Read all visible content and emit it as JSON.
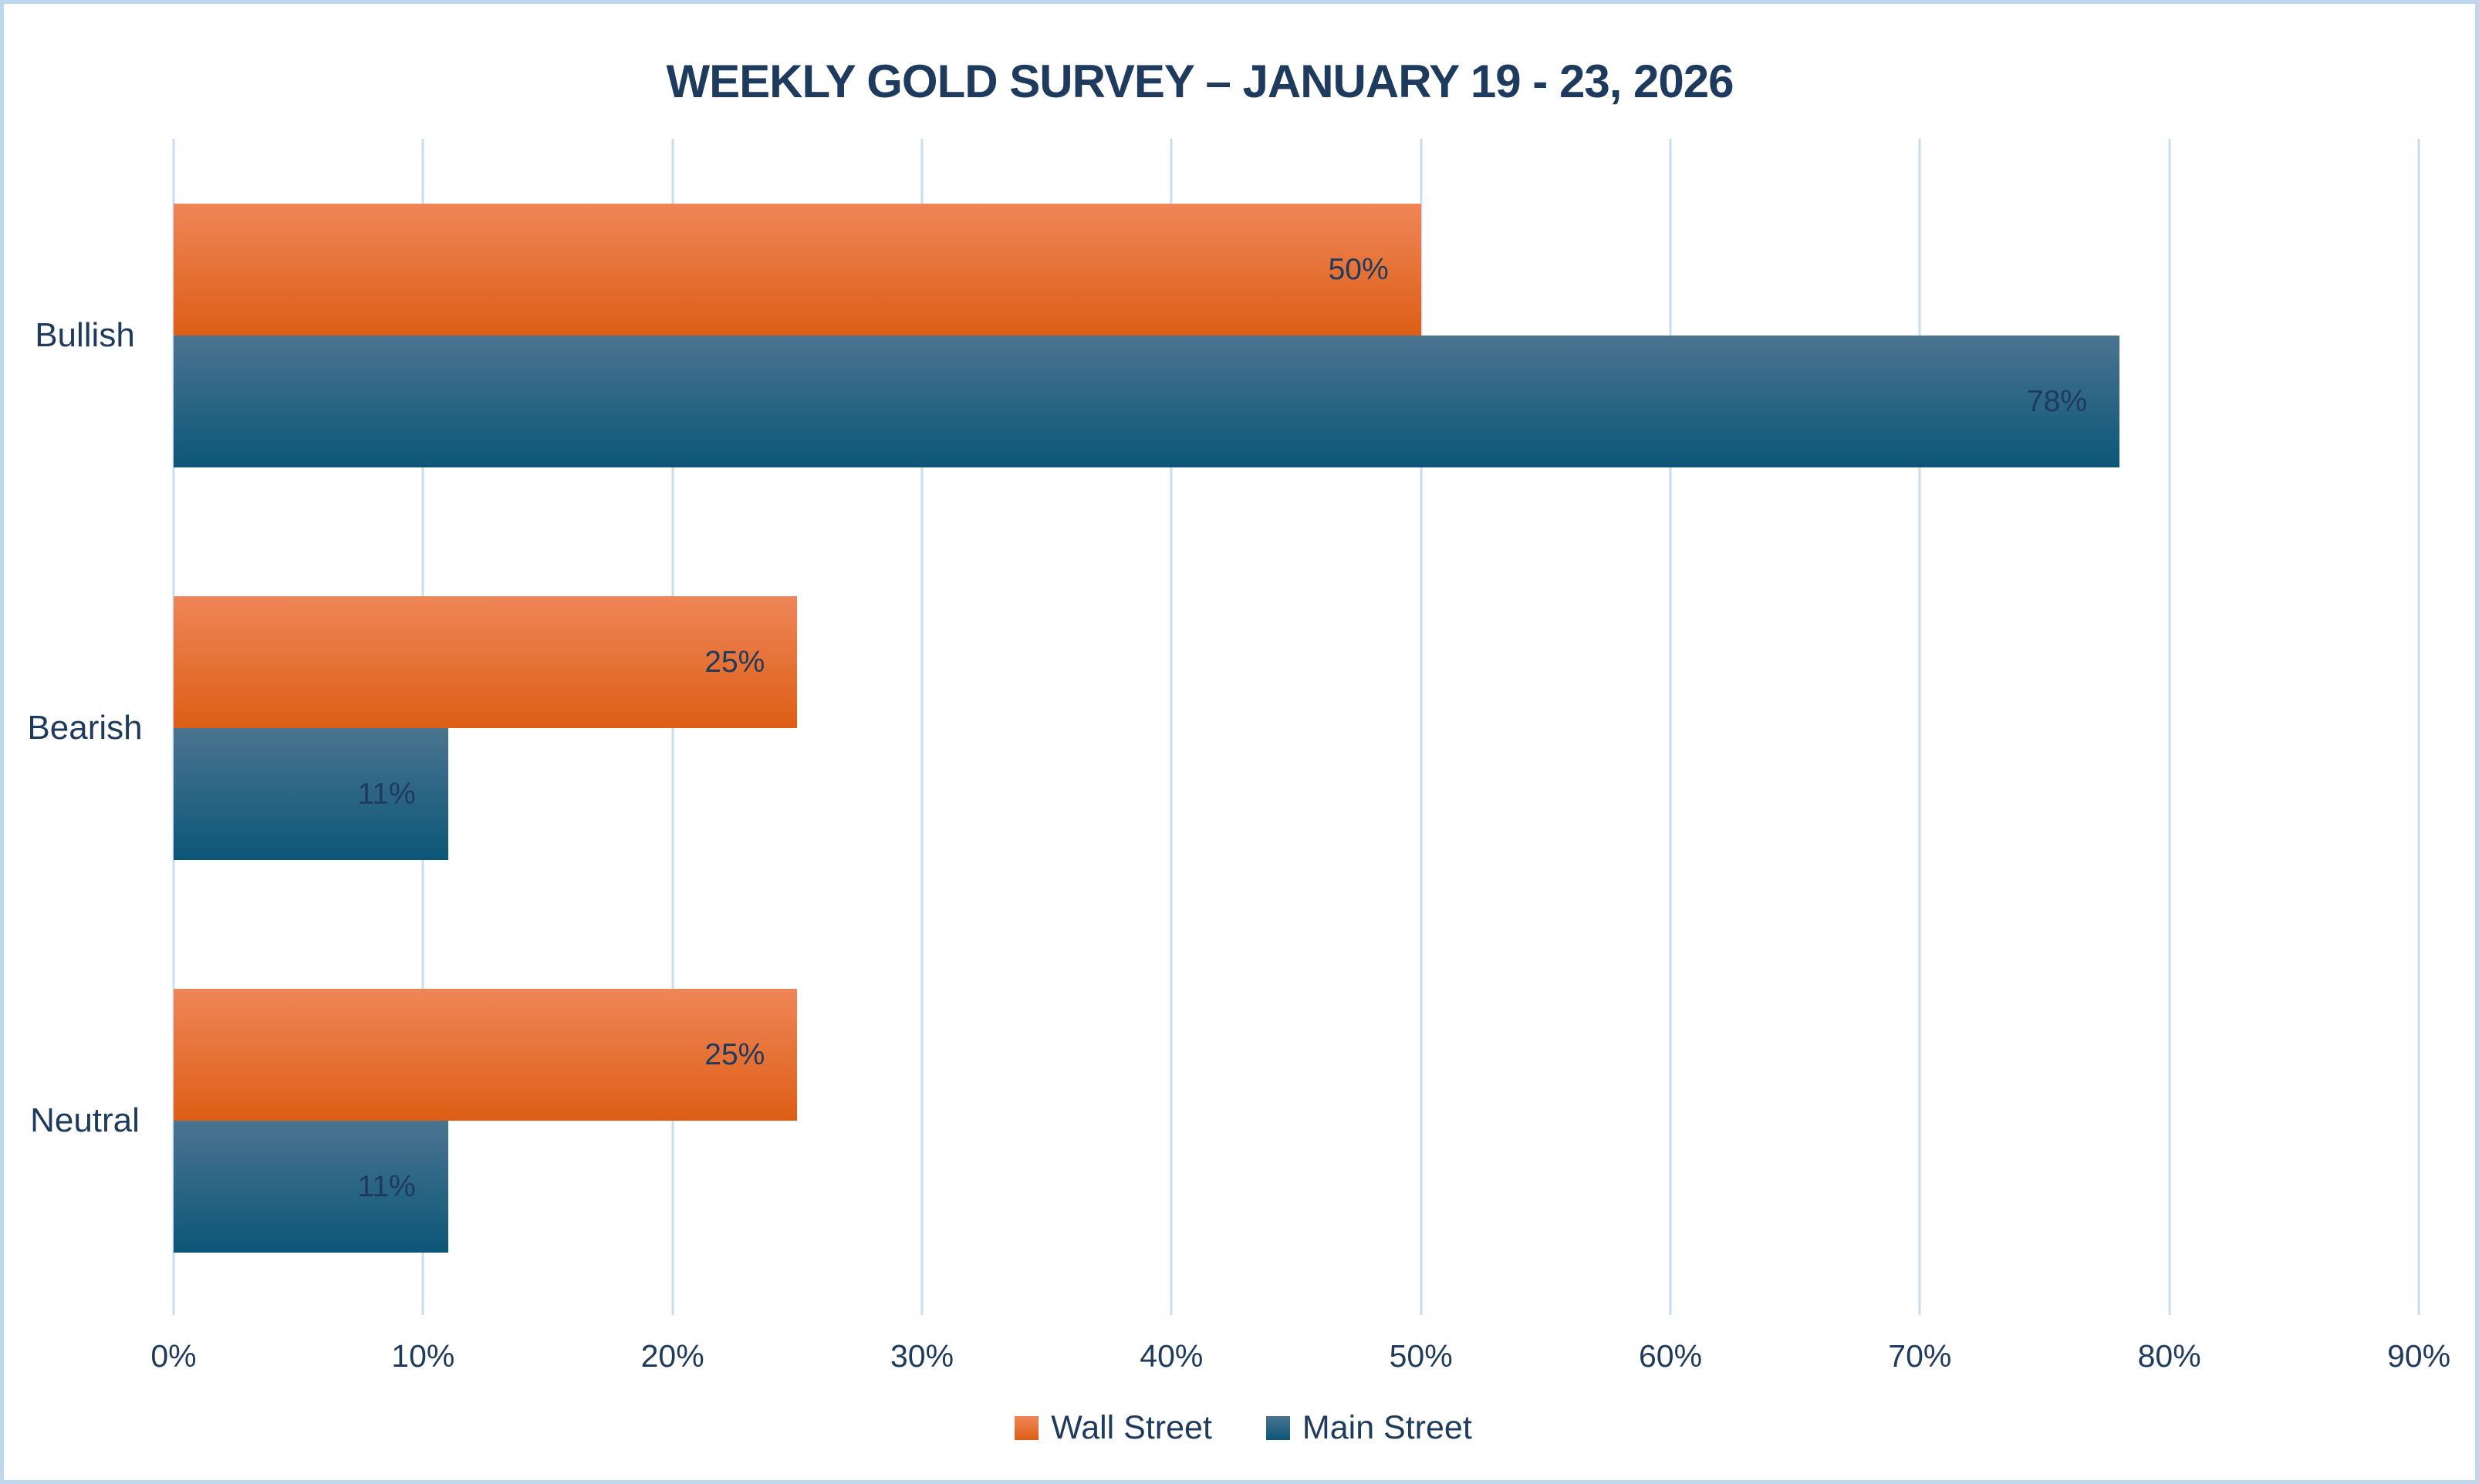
{
  "chart_data": {
    "type": "bar",
    "orientation": "horizontal",
    "title": "WEEKLY GOLD SURVEY – JANUARY 19 - 23, 2026",
    "categories": [
      "Bullish",
      "Bearish",
      "Neutral"
    ],
    "series": [
      {
        "name": "Wall Street",
        "values": [
          50,
          25,
          25
        ],
        "data_labels": [
          "50%",
          "25%",
          "25%"
        ],
        "color_top": "#ef8658",
        "color_bottom": "#dd5e15"
      },
      {
        "name": "Main Street",
        "values": [
          78,
          11,
          11
        ],
        "data_labels": [
          "78%",
          "11%",
          "11%"
        ],
        "color_top": "#4a7490",
        "color_bottom": "#0c5678"
      }
    ],
    "x_ticks": [
      "0%",
      "10%",
      "20%",
      "30%",
      "40%",
      "50%",
      "60%",
      "70%",
      "80%",
      "90%"
    ],
    "xlim": [
      0,
      90
    ],
    "grid": "vertical",
    "legend_position": "bottom",
    "colors": {
      "text": "#1e3a5c",
      "gridline": "#c9ddf1",
      "frame_border": "#bdd7ee",
      "background": "#ffffff"
    }
  }
}
